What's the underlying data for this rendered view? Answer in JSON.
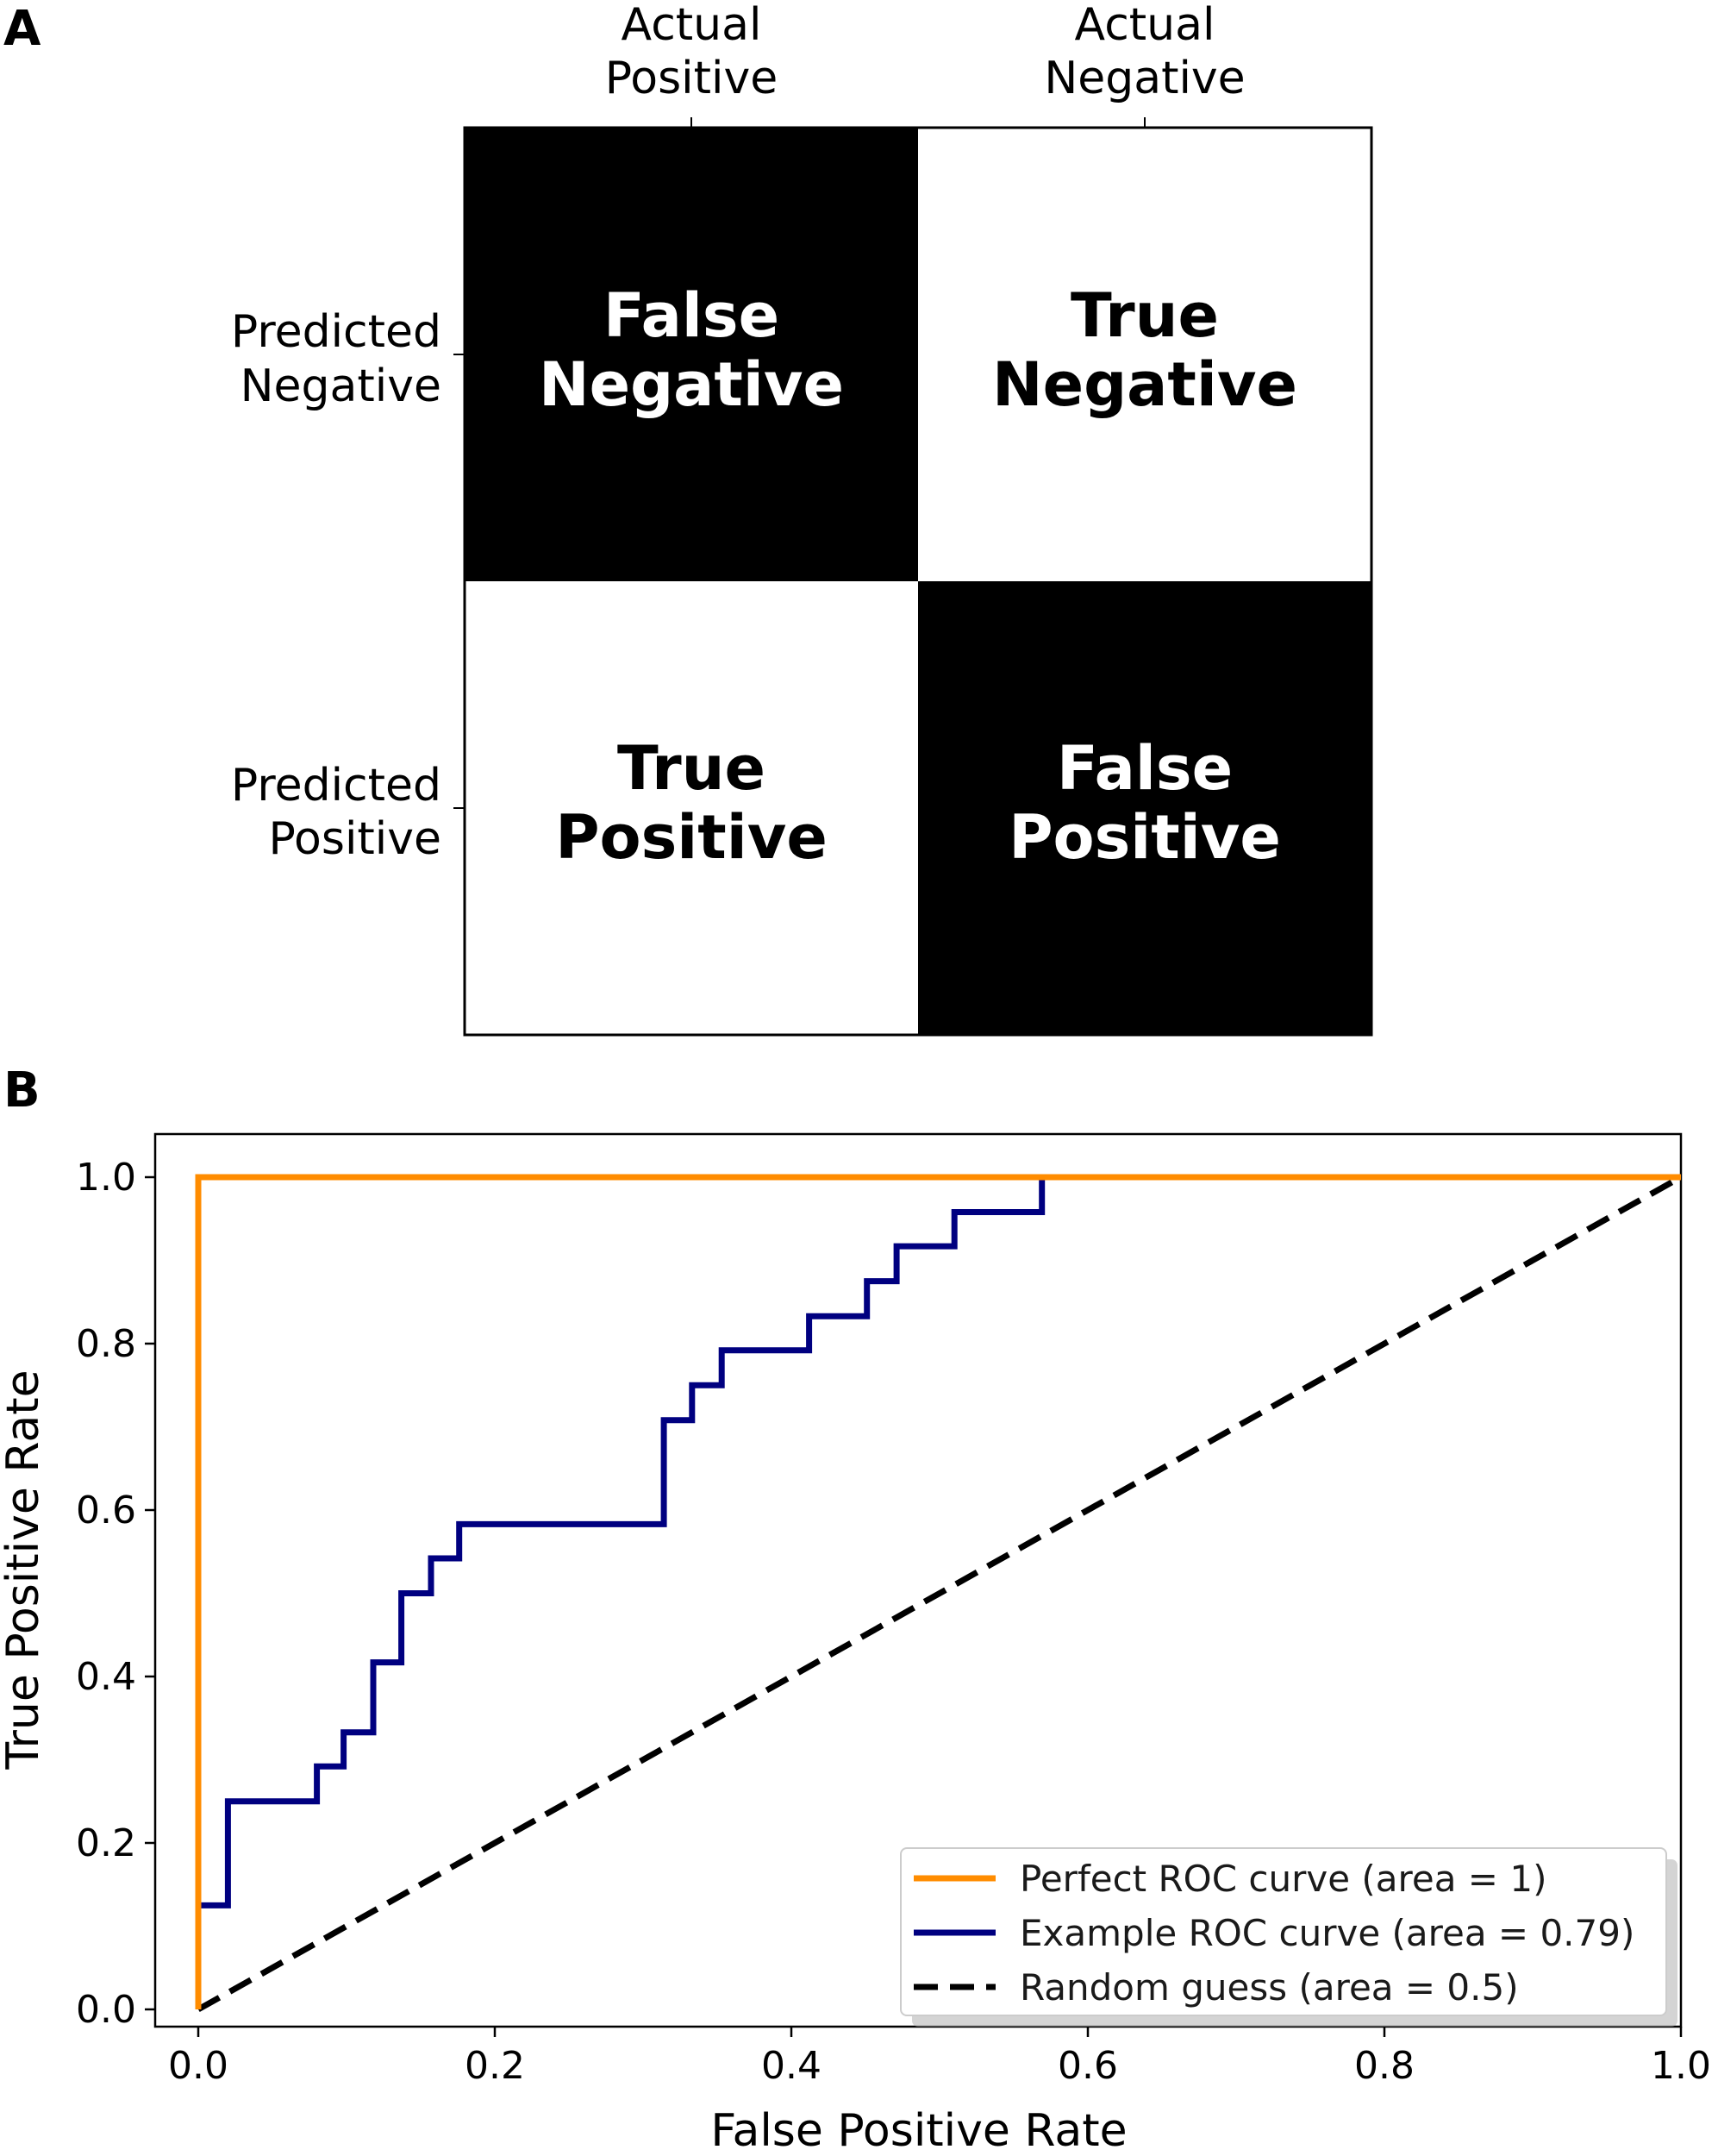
{
  "panel_a": {
    "letter": "A",
    "columns": [
      {
        "line1": "Actual",
        "line2": "Positive"
      },
      {
        "line1": "Actual",
        "line2": "Negative"
      }
    ],
    "rows": [
      {
        "line1": "Predicted",
        "line2": "Negative"
      },
      {
        "line1": "Predicted",
        "line2": "Positive"
      }
    ],
    "cells": [
      {
        "line1": "False",
        "line2": "Negative",
        "fill": "#000000",
        "text_color": "#ffffff"
      },
      {
        "line1": "True",
        "line2": "Negative",
        "fill": "#ffffff",
        "text_color": "#000000"
      },
      {
        "line1": "True",
        "line2": "Positive",
        "fill": "#ffffff",
        "text_color": "#000000"
      },
      {
        "line1": "False",
        "line2": "Positive",
        "fill": "#000000",
        "text_color": "#ffffff"
      }
    ]
  },
  "panel_b": {
    "letter": "B"
  },
  "chart_data": [
    {
      "type": "table",
      "title": "",
      "columns": [
        "Actual Positive",
        "Actual Negative"
      ],
      "rows": [
        "Predicted Negative",
        "Predicted Positive"
      ],
      "cells": [
        [
          "False Negative",
          "True Negative"
        ],
        [
          "True Positive",
          "False Positive"
        ]
      ]
    },
    {
      "type": "line",
      "title": "",
      "xlabel": "False Positive Rate",
      "ylabel": "True Positive Rate",
      "xlim": [
        0.0,
        1.0
      ],
      "ylim": [
        0.0,
        1.0
      ],
      "xticks": [
        "0.0",
        "0.2",
        "0.4",
        "0.6",
        "0.8",
        "1.0"
      ],
      "yticks": [
        "0.0",
        "0.2",
        "0.4",
        "0.6",
        "0.8",
        "1.0"
      ],
      "grid": false,
      "legend_position": "bottom-right",
      "series": [
        {
          "name": "Perfect ROC curve (area = 1)",
          "color": "#ff8c00",
          "dash": "solid",
          "x": [
            0.0,
            0.0,
            1.0
          ],
          "y": [
            0.0,
            1.0,
            1.0
          ]
        },
        {
          "name": "Example ROC curve (area = 0.79)",
          "color": "#000080",
          "dash": "solid",
          "x": [
            0.0,
            0.0,
            0.02,
            0.02,
            0.08,
            0.08,
            0.098,
            0.098,
            0.118,
            0.118,
            0.137,
            0.137,
            0.157,
            0.157,
            0.176,
            0.176,
            0.314,
            0.314,
            0.333,
            0.333,
            0.353,
            0.353,
            0.412,
            0.412,
            0.451,
            0.451,
            0.471,
            0.471,
            0.51,
            0.51,
            0.569,
            0.569,
            1.0
          ],
          "y": [
            0.0,
            0.125,
            0.125,
            0.25,
            0.25,
            0.292,
            0.292,
            0.333,
            0.333,
            0.417,
            0.417,
            0.5,
            0.5,
            0.542,
            0.542,
            0.583,
            0.583,
            0.708,
            0.708,
            0.75,
            0.75,
            0.792,
            0.792,
            0.833,
            0.833,
            0.875,
            0.875,
            0.917,
            0.917,
            0.958,
            0.958,
            1.0,
            1.0
          ]
        },
        {
          "name": "Random guess (area = 0.5)",
          "color": "#000000",
          "dash": "dashed",
          "x": [
            0.0,
            1.0
          ],
          "y": [
            0.0,
            1.0
          ]
        }
      ]
    }
  ]
}
